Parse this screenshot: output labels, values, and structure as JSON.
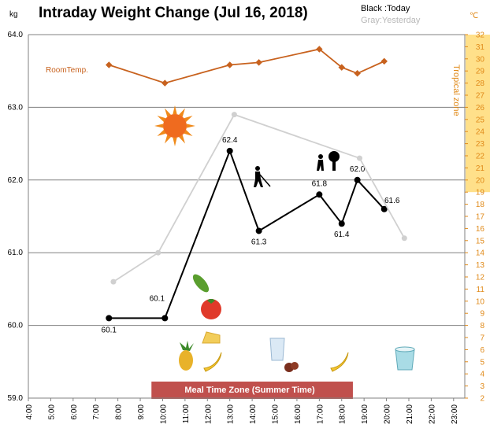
{
  "header": {
    "title": "Intraday Weight Change (Jul 16, 2018)",
    "y_unit_left": "kg",
    "y_unit_right": "℃",
    "legend_today": "Black :Today",
    "legend_yesterday": "Gray:Yesterday",
    "room_temp_label": "RoomTemp.",
    "tropical_zone_label": "Tropical zone",
    "meal_zone_label": "Meal Time Zone  (Summer Time)"
  },
  "colors": {
    "today": "#000000",
    "yesterday": "#d0d0d0",
    "room_temp": "#c8621e",
    "tropical_band": "#ffe08a",
    "meal_band": "#c0504d",
    "right_axis": "#e08a1a"
  },
  "icons": [
    "sun-icon",
    "cucumber-icon",
    "tomato-icon",
    "pineapple-icon",
    "cheese-icon",
    "banana-icon",
    "walking-person-icon",
    "gardening-person-icon",
    "water-glass-icon",
    "nuts-icon",
    "yogurt-cup-icon"
  ],
  "chart_data": {
    "type": "line",
    "title": "Intraday Weight Change (Jul 16, 2018)",
    "x_tick_labels": [
      "4:00",
      "5:00",
      "6:00",
      "7:00",
      "8:00",
      "9:00",
      "10:00",
      "11:00",
      "12:00",
      "13:00",
      "14:00",
      "15:00",
      "16:00",
      "17:00",
      "18:00",
      "19:00",
      "20:00",
      "21:00",
      "22:00",
      "23:00"
    ],
    "xlim": [
      4,
      23.5
    ],
    "ylim": [
      59.0,
      64.0
    ],
    "y_ticks": [
      "59.0",
      "60.0",
      "61.0",
      "62.0",
      "63.0",
      "64.0"
    ],
    "y2lim": [
      2,
      32
    ],
    "y2_ticks": [
      "2",
      "3",
      "4",
      "5",
      "6",
      "7",
      "8",
      "9",
      "10",
      "11",
      "12",
      "13",
      "14",
      "15",
      "16",
      "17",
      "18",
      "19",
      "20",
      "21",
      "22",
      "23",
      "24",
      "25",
      "26",
      "27",
      "28",
      "29",
      "30",
      "31",
      "32"
    ],
    "tropical_zone": [
      19,
      32
    ],
    "meal_zone": [
      9.5,
      18.5
    ],
    "series": [
      {
        "name": "Today",
        "x": [
          7.6,
          10.1,
          13.0,
          14.3,
          17.0,
          18.0,
          18.7,
          19.9
        ],
        "y": [
          60.1,
          60.1,
          62.4,
          61.3,
          61.8,
          61.4,
          62.0,
          61.6
        ],
        "labels": [
          "60.1",
          "60.1",
          "62.4",
          "61.3",
          "61.8",
          "61.4",
          "62.0",
          "61.6"
        ]
      },
      {
        "name": "Yesterday",
        "x": [
          7.8,
          9.8,
          13.2,
          18.8,
          20.8
        ],
        "y": [
          60.6,
          61.0,
          62.9,
          62.3,
          61.2
        ]
      },
      {
        "name": "RoomTemp.",
        "axis": "right",
        "x": [
          7.6,
          10.1,
          13.0,
          14.3,
          17.0,
          18.0,
          18.7,
          19.9
        ],
        "y": [
          29.5,
          28.0,
          29.5,
          29.7,
          30.8,
          29.3,
          28.8,
          29.8
        ]
      }
    ]
  }
}
